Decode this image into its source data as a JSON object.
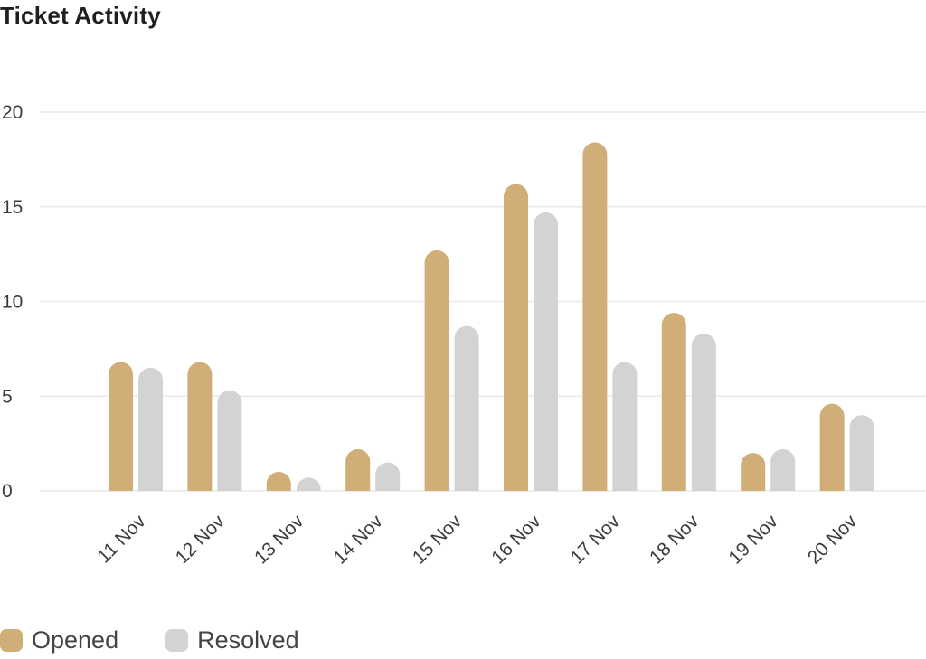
{
  "widget": {
    "title": "Ticket Activity"
  },
  "colors": {
    "opened": "#d1ad77",
    "resolved": "#d3d3d3",
    "grid": "#e9e9e9",
    "text": "#3b3b3b"
  },
  "chart_data": {
    "type": "bar",
    "title": "Ticket Activity",
    "xlabel": "",
    "ylabel": "",
    "categories": [
      "11 Nov",
      "12 Nov",
      "13 Nov",
      "14 Nov",
      "15 Nov",
      "16 Nov",
      "17 Nov",
      "18 Nov",
      "19 Nov",
      "20 Nov"
    ],
    "series": [
      {
        "name": "Opened",
        "values": [
          6.8,
          6.8,
          1.0,
          2.2,
          12.7,
          16.2,
          18.4,
          9.4,
          2.0,
          4.6
        ]
      },
      {
        "name": "Resolved",
        "values": [
          6.5,
          5.3,
          0.7,
          1.5,
          8.7,
          14.7,
          6.8,
          8.3,
          2.2,
          4.0
        ]
      }
    ],
    "ylim": [
      0,
      20
    ],
    "yticks": [
      0,
      5,
      10,
      15,
      20
    ],
    "grid": true,
    "legend_position": "bottom-left"
  }
}
